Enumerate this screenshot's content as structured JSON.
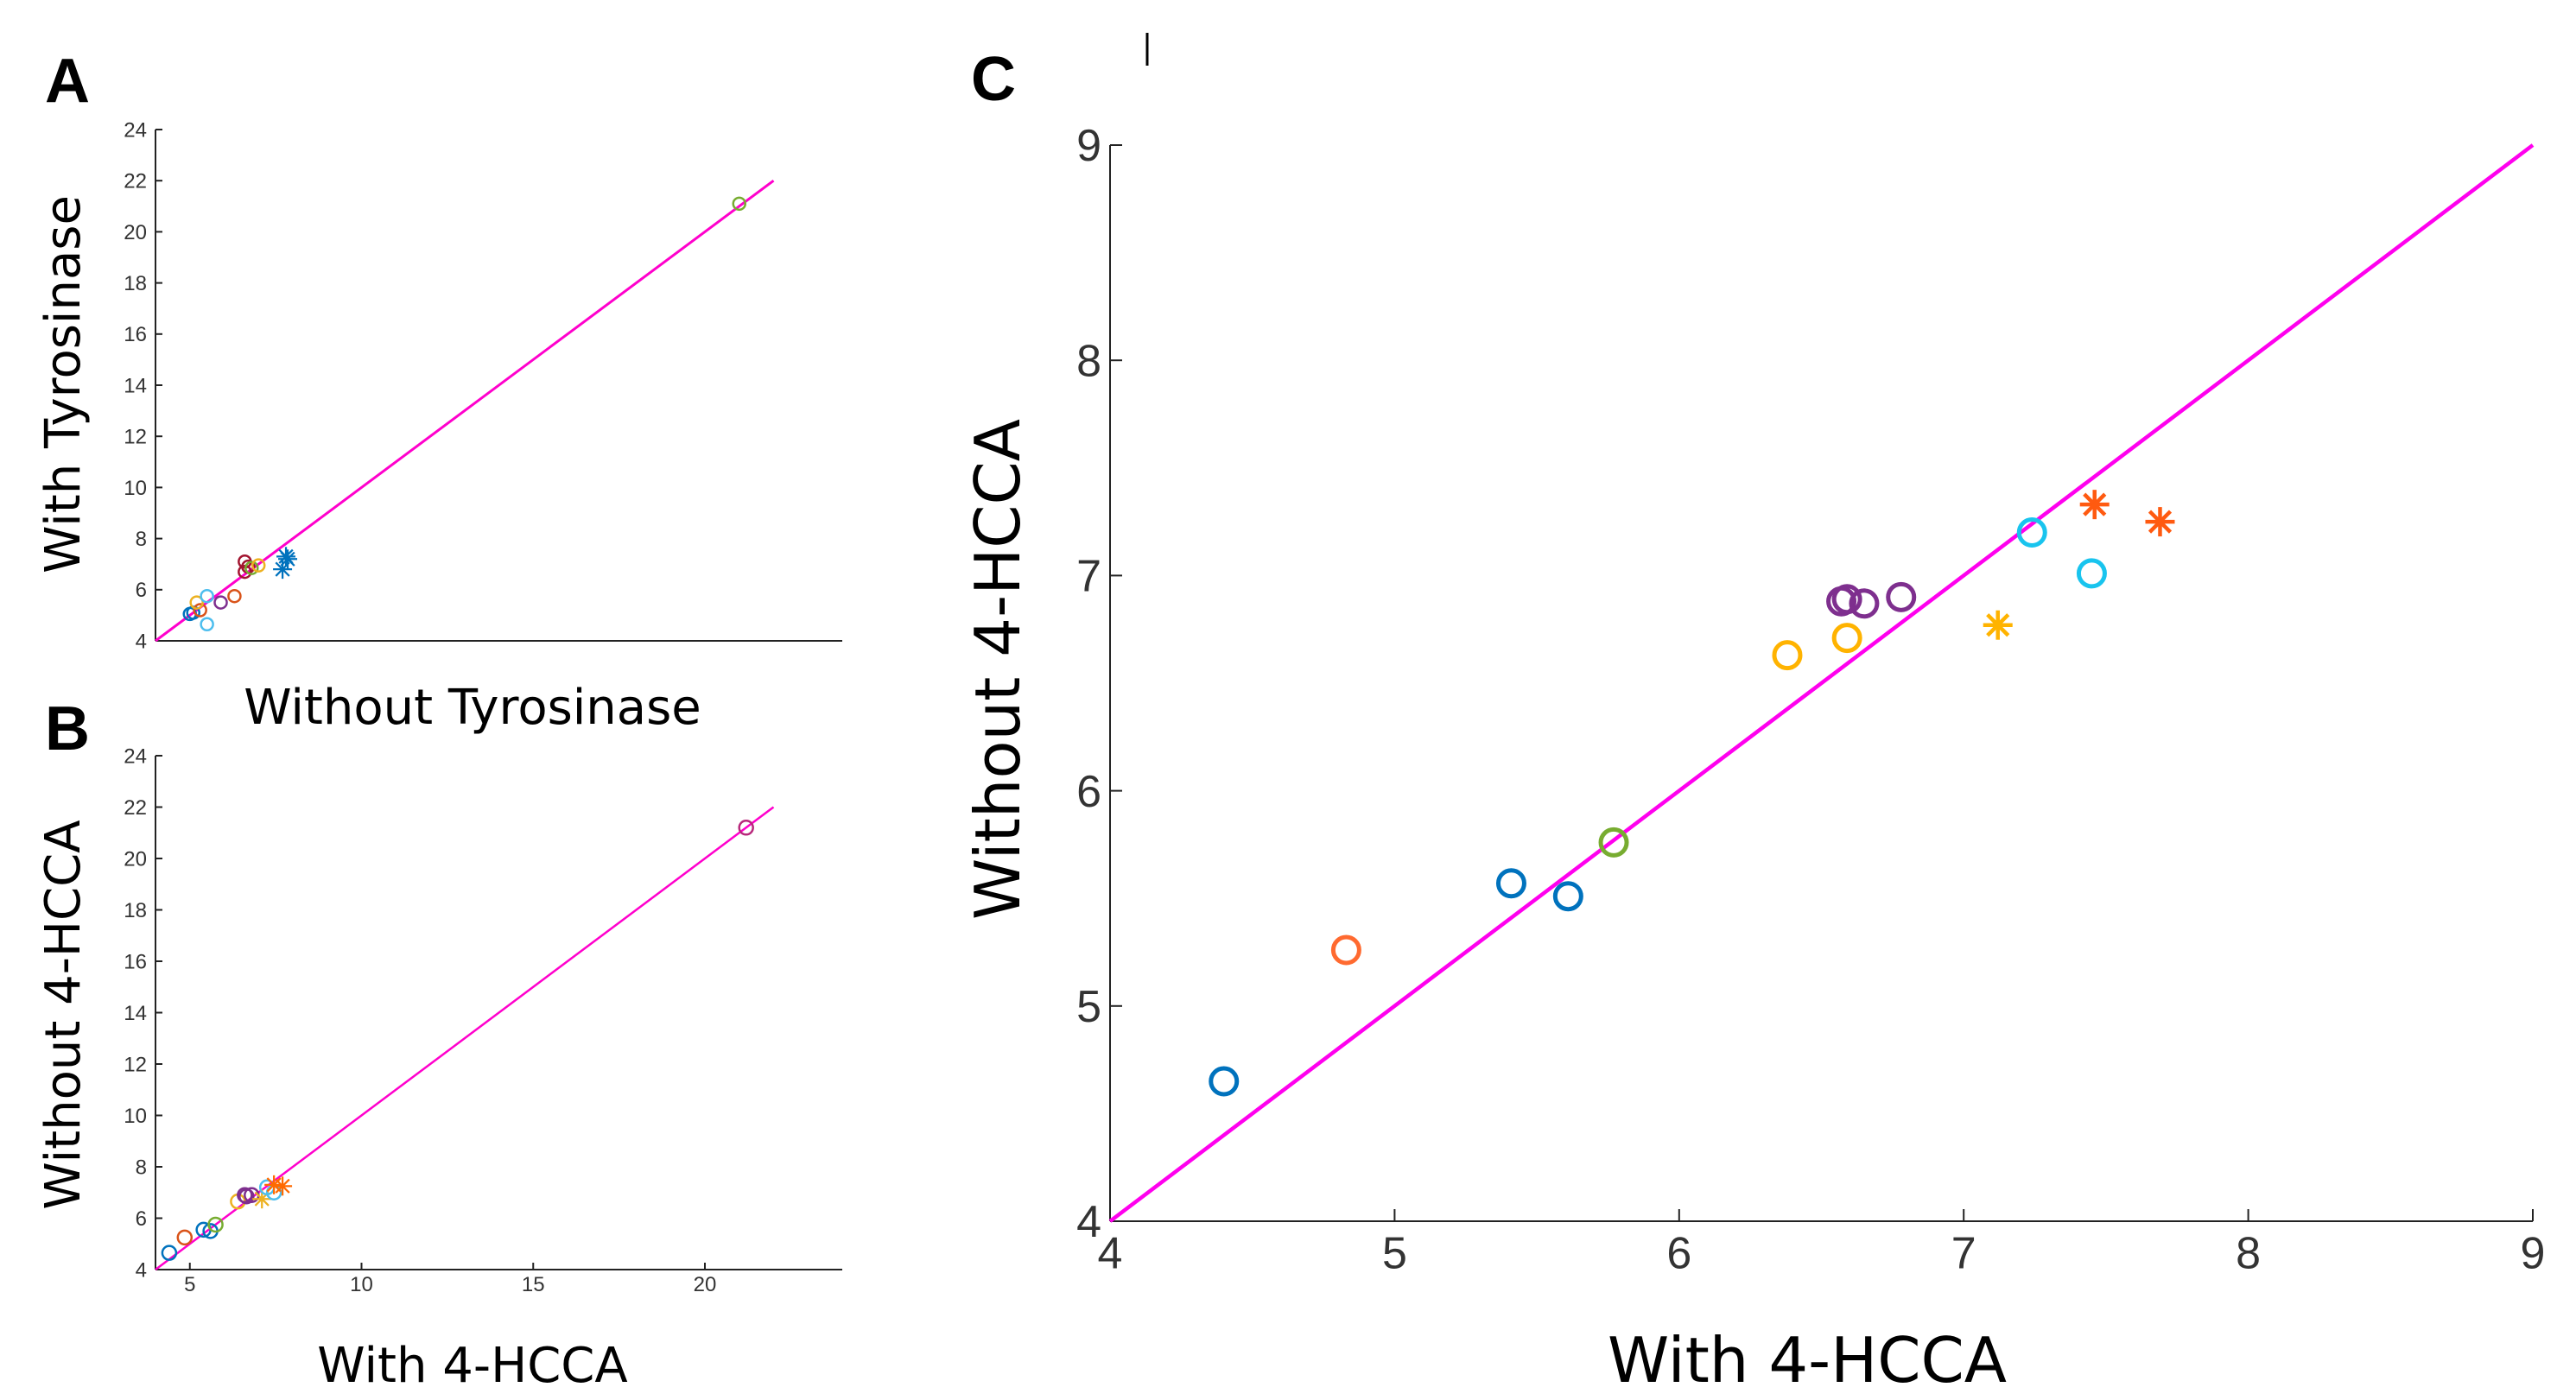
{
  "chart_data": [
    {
      "panel": "A",
      "type": "scatter",
      "xlabel": "Without Tyrosinase",
      "ylabel": "With Tyrosinase",
      "xlim": [
        4,
        24
      ],
      "ylim": [
        4,
        24
      ],
      "yticks": [
        4,
        6,
        8,
        10,
        12,
        14,
        16,
        18,
        20,
        22,
        24
      ],
      "xticks": [],
      "line": {
        "x": [
          4,
          22
        ],
        "y": [
          4,
          22
        ],
        "color": "#ff00cc"
      },
      "points": [
        {
          "x": 5.0,
          "y": 5.05,
          "m": "o",
          "c": "#0072bd"
        },
        {
          "x": 5.1,
          "y": 5.1,
          "m": "o",
          "c": "#0072bd"
        },
        {
          "x": 5.3,
          "y": 5.2,
          "m": "o",
          "c": "#d95319"
        },
        {
          "x": 5.2,
          "y": 5.5,
          "m": "o",
          "c": "#edb120"
        },
        {
          "x": 5.5,
          "y": 5.75,
          "m": "o",
          "c": "#4dbeee"
        },
        {
          "x": 5.5,
          "y": 4.65,
          "m": "o",
          "c": "#4dbeee"
        },
        {
          "x": 5.9,
          "y": 5.5,
          "m": "o",
          "c": "#7e2f8e"
        },
        {
          "x": 6.3,
          "y": 5.75,
          "m": "o",
          "c": "#d95319"
        },
        {
          "x": 6.6,
          "y": 7.1,
          "m": "o",
          "c": "#a2142f"
        },
        {
          "x": 6.6,
          "y": 6.7,
          "m": "o",
          "c": "#a2142f"
        },
        {
          "x": 6.7,
          "y": 6.9,
          "m": "o",
          "c": "#a2142f"
        },
        {
          "x": 6.8,
          "y": 6.85,
          "m": "o",
          "c": "#77ac30"
        },
        {
          "x": 7.0,
          "y": 6.95,
          "m": "o",
          "c": "#edb120"
        },
        {
          "x": 7.8,
          "y": 7.3,
          "m": "*",
          "c": "#0072bd"
        },
        {
          "x": 7.85,
          "y": 7.2,
          "m": "*",
          "c": "#0072bd"
        },
        {
          "x": 7.7,
          "y": 6.8,
          "m": "*",
          "c": "#0072bd"
        },
        {
          "x": 21.0,
          "y": 21.1,
          "m": "o",
          "c": "#77ac30"
        }
      ]
    },
    {
      "panel": "B",
      "type": "scatter",
      "xlabel": "With 4-HCCA",
      "ylabel": "Without 4-HCCA",
      "xlim": [
        4,
        24
      ],
      "ylim": [
        4,
        24
      ],
      "yticks": [
        4,
        6,
        8,
        10,
        12,
        14,
        16,
        18,
        20,
        22,
        24
      ],
      "xticks": [
        5,
        10,
        15,
        20
      ],
      "line": {
        "x": [
          4,
          22
        ],
        "y": [
          4,
          22
        ],
        "color": "#ff00cc"
      },
      "points": [
        {
          "x": 4.4,
          "y": 4.65,
          "m": "o",
          "c": "#0072bd"
        },
        {
          "x": 4.85,
          "y": 5.25,
          "m": "o",
          "c": "#d95319"
        },
        {
          "x": 5.4,
          "y": 5.55,
          "m": "o",
          "c": "#0072bd"
        },
        {
          "x": 5.6,
          "y": 5.5,
          "m": "o",
          "c": "#0072bd"
        },
        {
          "x": 5.75,
          "y": 5.75,
          "m": "o",
          "c": "#77ac30"
        },
        {
          "x": 6.4,
          "y": 6.65,
          "m": "o",
          "c": "#edb120"
        },
        {
          "x": 6.6,
          "y": 6.9,
          "m": "o",
          "c": "#7e2f8e"
        },
        {
          "x": 6.65,
          "y": 6.85,
          "m": "o",
          "c": "#7e2f8e"
        },
        {
          "x": 6.8,
          "y": 6.9,
          "m": "o",
          "c": "#7e2f8e"
        },
        {
          "x": 7.1,
          "y": 6.75,
          "m": "*",
          "c": "#edb120"
        },
        {
          "x": 7.25,
          "y": 7.2,
          "m": "o",
          "c": "#4dbeee"
        },
        {
          "x": 7.45,
          "y": 7.0,
          "m": "o",
          "c": "#4dbeee"
        },
        {
          "x": 7.45,
          "y": 7.3,
          "m": "*",
          "c": "#ff6a00"
        },
        {
          "x": 7.7,
          "y": 7.25,
          "m": "*",
          "c": "#ff6a00"
        },
        {
          "x": 21.2,
          "y": 21.2,
          "m": "o",
          "c": "#b8287c"
        }
      ]
    },
    {
      "panel": "C",
      "type": "scatter",
      "xlabel": "With 4-HCCA",
      "ylabel": "Without 4-HCCA",
      "xlim": [
        4,
        9
      ],
      "ylim": [
        4,
        9
      ],
      "yticks": [
        4,
        5,
        6,
        7,
        8,
        9
      ],
      "xticks": [
        4,
        5,
        6,
        7,
        8,
        9
      ],
      "line": {
        "x": [
          4,
          9
        ],
        "y": [
          4,
          9
        ],
        "color": "#ff00ee"
      },
      "points": [
        {
          "x": 4.4,
          "y": 4.65,
          "m": "o",
          "c": "#0072bd"
        },
        {
          "x": 4.83,
          "y": 5.26,
          "m": "o",
          "c": "#ff6a30"
        },
        {
          "x": 5.41,
          "y": 5.57,
          "m": "o",
          "c": "#0072bd"
        },
        {
          "x": 5.61,
          "y": 5.51,
          "m": "o",
          "c": "#0072bd"
        },
        {
          "x": 5.77,
          "y": 5.76,
          "m": "o",
          "c": "#77ac30"
        },
        {
          "x": 6.38,
          "y": 6.63,
          "m": "o",
          "c": "#ffb300"
        },
        {
          "x": 6.59,
          "y": 6.71,
          "m": "o",
          "c": "#ffb300"
        },
        {
          "x": 6.57,
          "y": 6.88,
          "m": "o",
          "c": "#7e2f8e"
        },
        {
          "x": 6.59,
          "y": 6.89,
          "m": "o",
          "c": "#7e2f8e"
        },
        {
          "x": 6.65,
          "y": 6.87,
          "m": "o",
          "c": "#7e2f8e"
        },
        {
          "x": 6.78,
          "y": 6.9,
          "m": "o",
          "c": "#7e2f8e"
        },
        {
          "x": 7.12,
          "y": 6.77,
          "m": "*",
          "c": "#ffb300"
        },
        {
          "x": 7.24,
          "y": 7.2,
          "m": "o",
          "c": "#19c4ee"
        },
        {
          "x": 7.45,
          "y": 7.01,
          "m": "o",
          "c": "#19c4ee"
        },
        {
          "x": 7.46,
          "y": 7.33,
          "m": "*",
          "c": "#ff5a10"
        },
        {
          "x": 7.69,
          "y": 7.25,
          "m": "*",
          "c": "#ff5a10"
        }
      ]
    }
  ]
}
